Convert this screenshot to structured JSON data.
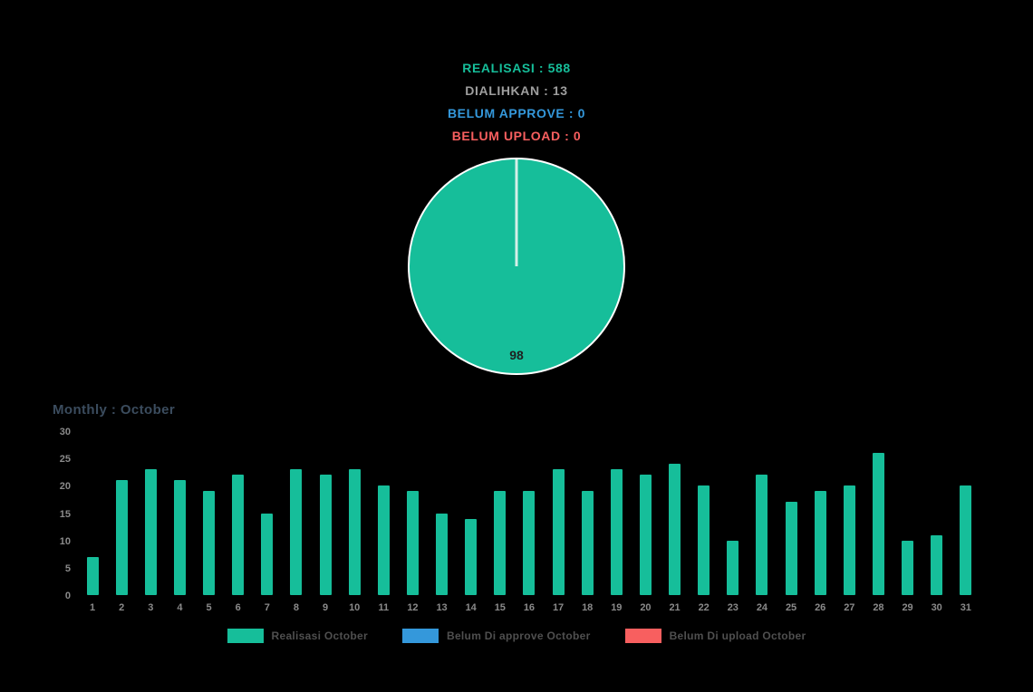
{
  "colors": {
    "background": "#000000",
    "green": "#16be9a",
    "blue": "#3498db",
    "red": "#f85f5f",
    "gray": "#9e9e9e",
    "title_text": "#3b4c5e",
    "axis_text": "#8a8a8a",
    "legend_text": "#4f4f4f",
    "pie_divider": "#d4f0e8",
    "pie_border": "#ffffff",
    "pie_label_text": "#1f1f1f"
  },
  "stats": [
    {
      "label": "REALISASI",
      "value": "588",
      "color": "#16be9a"
    },
    {
      "label": "DIALIHKAN",
      "value": "13",
      "color": "#9e9e9e"
    },
    {
      "label": "BELUM APPROVE",
      "value": "0",
      "color": "#3498db"
    },
    {
      "label": "BELUM UPLOAD",
      "value": "0",
      "color": "#f85f5f"
    }
  ],
  "chart_data": [
    {
      "type": "pie",
      "title": "",
      "slices": [
        {
          "label": "98",
          "value": 98,
          "color": "#16be9a"
        },
        {
          "label": "",
          "value": 2,
          "color": "none"
        }
      ],
      "visible_label": "98",
      "legend_position": "none"
    },
    {
      "type": "bar",
      "title": "Monthly : October",
      "xlabel": "",
      "ylabel": "",
      "ylim": [
        0,
        30
      ],
      "yticks": [
        0,
        5,
        10,
        15,
        20,
        25,
        30
      ],
      "grid": false,
      "categories": [
        "1",
        "2",
        "3",
        "4",
        "5",
        "6",
        "7",
        "8",
        "9",
        "10",
        "11",
        "12",
        "13",
        "14",
        "15",
        "16",
        "17",
        "18",
        "19",
        "20",
        "21",
        "22",
        "23",
        "24",
        "25",
        "26",
        "27",
        "28",
        "29",
        "30",
        "31"
      ],
      "series": [
        {
          "name": "Realisasi October",
          "color": "#16be9a",
          "values": [
            7,
            21,
            23,
            21,
            19,
            22,
            15,
            23,
            22,
            23,
            20,
            19,
            15,
            14,
            19,
            19,
            23,
            19,
            23,
            22,
            24,
            20,
            10,
            22,
            17,
            19,
            20,
            26,
            10,
            11,
            20
          ]
        },
        {
          "name": "Belum Di approve October",
          "color": "#3498db",
          "values": [
            0,
            0,
            0,
            0,
            0,
            0,
            0,
            0,
            0,
            0,
            0,
            0,
            0,
            0,
            0,
            0,
            0,
            0,
            0,
            0,
            0,
            0,
            0,
            0,
            0,
            0,
            0,
            0,
            0,
            0,
            0
          ]
        },
        {
          "name": "Belum Di upload October",
          "color": "#f85f5f",
          "values": [
            0,
            0,
            0,
            0,
            0,
            0,
            0,
            0,
            0,
            0,
            0,
            0,
            0,
            0,
            0,
            0,
            0,
            0,
            0,
            0,
            0,
            0,
            0,
            0,
            0,
            0,
            0,
            0,
            0,
            0,
            0
          ]
        }
      ],
      "legend_position": "bottom"
    }
  ],
  "legend": [
    {
      "label": "Realisasi October",
      "color": "#16be9a"
    },
    {
      "label": "Belum Di approve October",
      "color": "#3498db"
    },
    {
      "label": "Belum Di upload October",
      "color": "#f85f5f"
    }
  ]
}
